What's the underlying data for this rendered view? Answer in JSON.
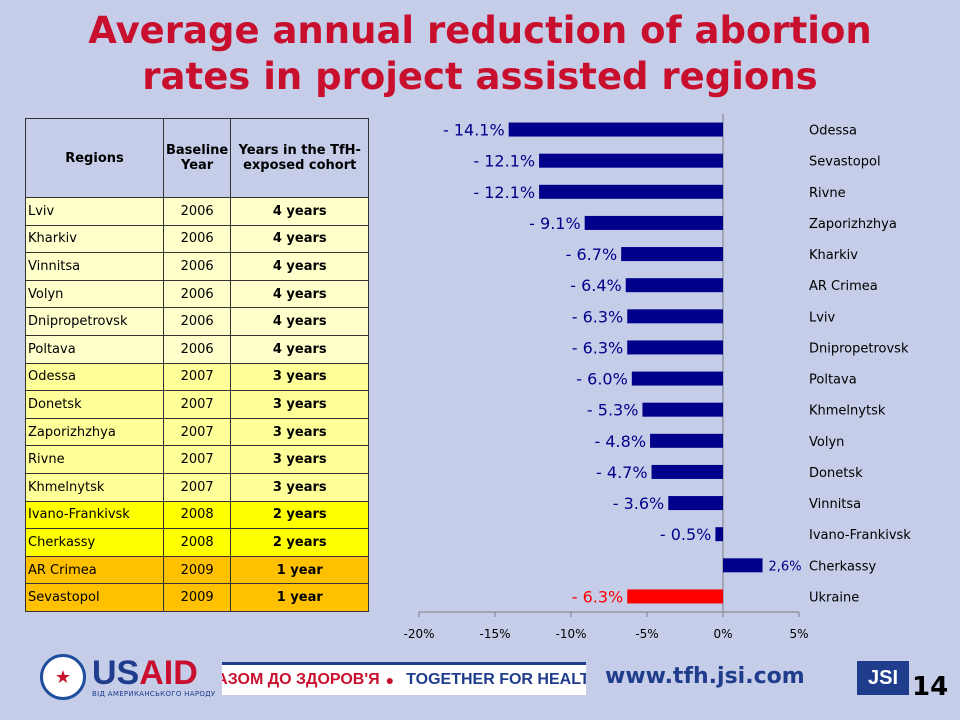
{
  "title": {
    "line1": "Average annual reduction of abortion",
    "line2": "rates in project assisted regions"
  },
  "table": {
    "headers": {
      "region": "Regions",
      "baseline": "Baseline Year",
      "cohort": "Years in the TfH-exposed cohort"
    },
    "rows": [
      {
        "region": "Lviv",
        "year": "2006",
        "cohort": "4 years",
        "group": "c4"
      },
      {
        "region": "Kharkiv",
        "year": "2006",
        "cohort": "4 years",
        "group": "c4"
      },
      {
        "region": "Vinnitsa",
        "year": "2006",
        "cohort": "4 years",
        "group": "c4"
      },
      {
        "region": "Volyn",
        "year": "2006",
        "cohort": "4 years",
        "group": "c4"
      },
      {
        "region": "Dnipropetrovsk",
        "year": "2006",
        "cohort": "4 years",
        "group": "c4"
      },
      {
        "region": "Poltava",
        "year": "2006",
        "cohort": "4 years",
        "group": "c4"
      },
      {
        "region": "Odessa",
        "year": "2007",
        "cohort": "3 years",
        "group": "c3"
      },
      {
        "region": "Donetsk",
        "year": "2007",
        "cohort": "3 years",
        "group": "c3"
      },
      {
        "region": "Zaporizhzhya",
        "year": "2007",
        "cohort": "3 years",
        "group": "c3"
      },
      {
        "region": "Rivne",
        "year": "2007",
        "cohort": "3 years",
        "group": "c3"
      },
      {
        "region": "Khmelnytsk",
        "year": "2007",
        "cohort": "3 years",
        "group": "c3"
      },
      {
        "region": "Ivano-Frankivsk",
        "year": "2008",
        "cohort": "2 years",
        "group": "c2"
      },
      {
        "region": "Cherkassy",
        "year": "2008",
        "cohort": "2 years",
        "group": "c2"
      },
      {
        "region": "AR Crimea",
        "year": "2009",
        "cohort": "1 year",
        "group": "c1"
      },
      {
        "region": "Sevastopol",
        "year": "2009",
        "cohort": "1 year",
        "group": "c1"
      }
    ]
  },
  "chart_data": {
    "type": "bar",
    "orientation": "horizontal",
    "categories": [
      "Odessa",
      "Sevastopol",
      "Rivne",
      "Zaporizhzhya",
      "Kharkiv",
      "AR Crimea",
      "Lviv",
      "Dnipropetrovsk",
      "Poltava",
      "Khmelnytsk",
      "Volyn",
      "Donetsk",
      "Vinnitsa",
      "Ivano-Frankivsk",
      "Cherkassy",
      "Ukraine"
    ],
    "values": [
      -14.1,
      -12.1,
      -12.1,
      -9.1,
      -6.7,
      -6.4,
      -6.3,
      -6.3,
      -6.0,
      -5.3,
      -4.8,
      -4.7,
      -3.6,
      -0.5,
      2.6,
      -6.3
    ],
    "data_labels": [
      "- 14.1%",
      "- 12.1%",
      "- 12.1%",
      "- 9.1%",
      "- 6.7%",
      "- 6.4%",
      "- 6.3%",
      "- 6.3%",
      "- 6.0%",
      "- 5.3%",
      "- 4.8%",
      "- 4.7%",
      "- 3.6%",
      "- 0.5%",
      "2,6%",
      "- 6.3%"
    ],
    "colors": [
      "#00008b",
      "#00008b",
      "#00008b",
      "#00008b",
      "#00008b",
      "#00008b",
      "#00008b",
      "#00008b",
      "#00008b",
      "#00008b",
      "#00008b",
      "#00008b",
      "#00008b",
      "#00008b",
      "#00008b",
      "#ff0000"
    ],
    "xlim": [
      -20,
      5
    ],
    "xticks": [
      -20,
      -15,
      -10,
      -5,
      0,
      5
    ],
    "xtick_labels": [
      "-20%",
      "-15%",
      "-10%",
      "-5%",
      "0%",
      "5%"
    ],
    "grid": false,
    "legend": "none"
  },
  "footer": {
    "usaid_seal": "★",
    "usaid_us": "US",
    "usaid_aid": "AID",
    "usaid_sub": "ВІД АМЕРИКАНСЬКОГО НАРОДУ",
    "banner_ua": "РАЗОМ ДО ЗДОРОВ'Я",
    "banner_dot": "●",
    "banner_en": "TOGETHER FOR HEALTH",
    "url": "www.tfh.jsi.com",
    "jsi": "JSI",
    "page_number": "14"
  }
}
